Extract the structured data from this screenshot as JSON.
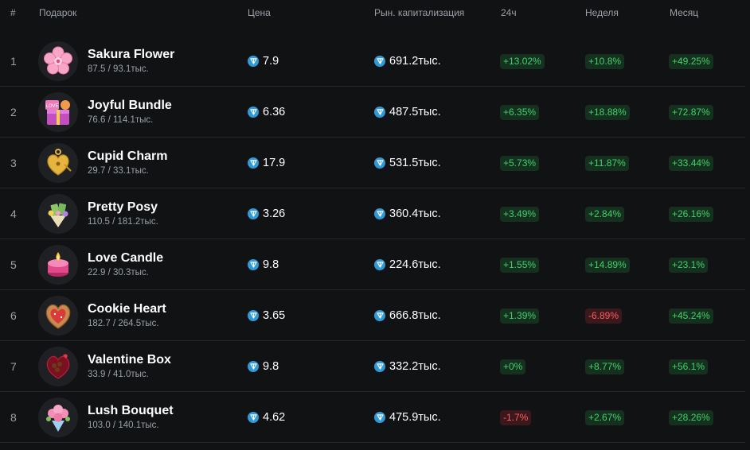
{
  "header": {
    "rank": "#",
    "gift": "Подарок",
    "price": "Цена",
    "market_cap": "Рын. капитализация",
    "h24": "24ч",
    "week": "Неделя",
    "month": "Месяц"
  },
  "colors": {
    "positive": "#3fd26a",
    "negative": "#ff5d62",
    "ton": "#2f9ad8",
    "background": "#111214"
  },
  "rows": [
    {
      "rank": "1",
      "name": "Sakura Flower",
      "sub": "87.5 / 93.1тыс.",
      "icon": "sakura-flower-icon",
      "price": "7.9",
      "market_cap": "691.2тыс.",
      "h24": "+13.02%",
      "h24_dir": "pos",
      "week": "+10.8%",
      "week_dir": "pos",
      "month": "+49.25%",
      "month_dir": "pos"
    },
    {
      "rank": "2",
      "name": "Joyful Bundle",
      "sub": "76.6 / 114.1тыс.",
      "icon": "joyful-bundle-icon",
      "price": "6.36",
      "market_cap": "487.5тыс.",
      "h24": "+6.35%",
      "h24_dir": "pos",
      "week": "+18.88%",
      "week_dir": "pos",
      "month": "+72.87%",
      "month_dir": "pos"
    },
    {
      "rank": "3",
      "name": "Cupid Charm",
      "sub": "29.7 / 33.1тыс.",
      "icon": "cupid-charm-icon",
      "price": "17.9",
      "market_cap": "531.5тыс.",
      "h24": "+5.73%",
      "h24_dir": "pos",
      "week": "+11.87%",
      "week_dir": "pos",
      "month": "+33.44%",
      "month_dir": "pos"
    },
    {
      "rank": "4",
      "name": "Pretty Posy",
      "sub": "110.5 / 181.2тыс.",
      "icon": "pretty-posy-icon",
      "price": "3.26",
      "market_cap": "360.4тыс.",
      "h24": "+3.49%",
      "h24_dir": "pos",
      "week": "+2.84%",
      "week_dir": "pos",
      "month": "+26.16%",
      "month_dir": "pos"
    },
    {
      "rank": "5",
      "name": "Love Candle",
      "sub": "22.9 / 30.3тыс.",
      "icon": "love-candle-icon",
      "price": "9.8",
      "market_cap": "224.6тыс.",
      "h24": "+1.55%",
      "h24_dir": "pos",
      "week": "+14.89%",
      "week_dir": "pos",
      "month": "+23.1%",
      "month_dir": "pos"
    },
    {
      "rank": "6",
      "name": "Cookie Heart",
      "sub": "182.7 / 264.5тыс.",
      "icon": "cookie-heart-icon",
      "price": "3.65",
      "market_cap": "666.8тыс.",
      "h24": "+1.39%",
      "h24_dir": "pos",
      "week": "-6.89%",
      "week_dir": "neg",
      "month": "+45.24%",
      "month_dir": "pos"
    },
    {
      "rank": "7",
      "name": "Valentine Box",
      "sub": "33.9 / 41.0тыс.",
      "icon": "valentine-box-icon",
      "price": "9.8",
      "market_cap": "332.2тыс.",
      "h24": "+0%",
      "h24_dir": "pos",
      "week": "+8.77%",
      "week_dir": "pos",
      "month": "+56.1%",
      "month_dir": "pos"
    },
    {
      "rank": "8",
      "name": "Lush Bouquet",
      "sub": "103.0 / 140.1тыс.",
      "icon": "lush-bouquet-icon",
      "price": "4.62",
      "market_cap": "475.9тыс.",
      "h24": "-1.7%",
      "h24_dir": "neg",
      "week": "+2.67%",
      "week_dir": "pos",
      "month": "+28.26%",
      "month_dir": "pos"
    }
  ]
}
